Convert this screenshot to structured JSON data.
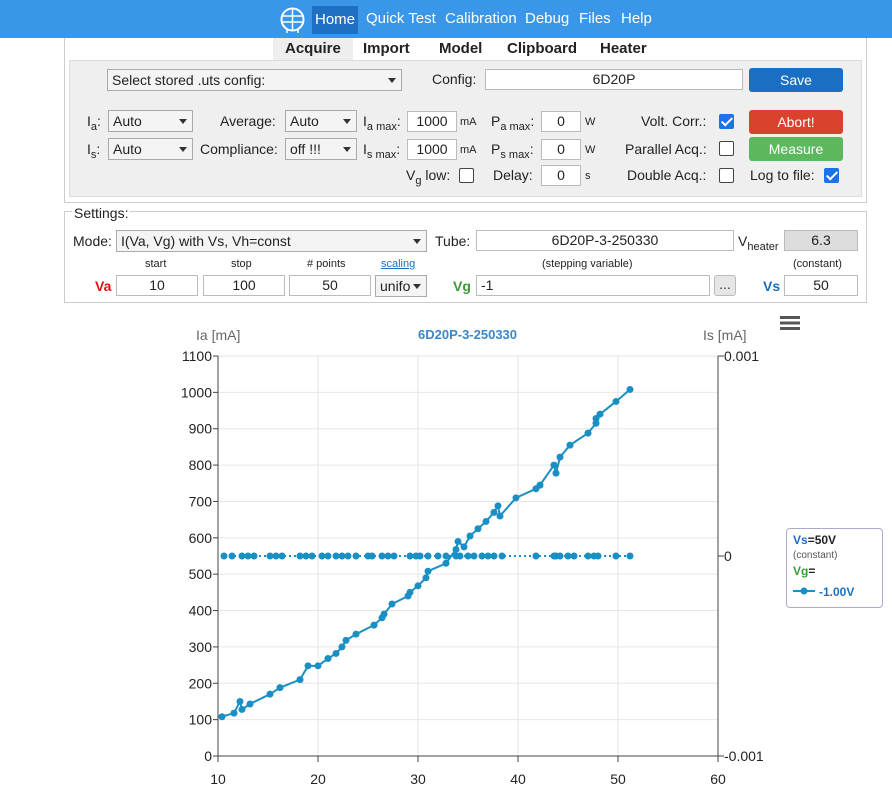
{
  "nav": {
    "items": [
      "Home",
      "Quick Test",
      "Calibration",
      "Debug",
      "Files",
      "Help"
    ],
    "active": "Home"
  },
  "subtabs": {
    "items": [
      "Acquire",
      "Import",
      "Model",
      "Clipboard",
      "Heater"
    ],
    "active": "Acquire"
  },
  "acquire": {
    "stored_config_select": "Select stored .uts config:",
    "config_label": "Config:",
    "config_value": "6D20P",
    "save_label": "Save",
    "ia_label": "I",
    "ia_sub": "a",
    "ia_value": "Auto",
    "is_label": "I",
    "is_sub": "s",
    "is_value": "Auto",
    "average_label": "Average:",
    "average_value": "Auto",
    "compliance_label": "Compliance:",
    "compliance_value": "off !!!",
    "iamax_label": "I",
    "iamax_sub": "a max",
    "iamax_value": "1000",
    "iamax_unit": "mA",
    "ismax_label": "I",
    "ismax_sub": "s max",
    "ismax_value": "1000",
    "ismax_unit": "mA",
    "pamax_label": "P",
    "pamax_sub": "a max",
    "pamax_value": "0",
    "pamax_unit": "W",
    "psmax_label": "P",
    "psmax_sub": "s max",
    "psmax_value": "0",
    "psmax_unit": "W",
    "vglow_label": "V",
    "vglow_sub": "g",
    "vglow_suffix": " low:",
    "delay_label": "Delay:",
    "delay_value": "0",
    "delay_unit": "s",
    "voltcorr_label": "Volt. Corr.:",
    "parallel_label": "Parallel Acq.:",
    "double_label": "Double Acq.:",
    "logfile_label": "Log to file:",
    "abort_label": "Abort!",
    "measure_label": "Measure",
    "abort_color": "#d9432e",
    "measure_color": "#5cb85c",
    "save_color": "#1a6fc4"
  },
  "settings": {
    "legend": "Settings:",
    "mode_label": "Mode:",
    "mode_value": "I(Va, Vg) with Vs, Vh=const",
    "tube_label": "Tube:",
    "tube_value": "6D20P-3-250330",
    "vheater_label": "V",
    "vheater_sub": "heater",
    "vheater_value": "6.3",
    "start_label": "start",
    "stop_label": "stop",
    "points_label": "# points",
    "scaling_label": "scaling",
    "stepping_label": "(stepping variable)",
    "constant_label": "(constant)",
    "va_label": "Va",
    "va_start": "10",
    "va_stop": "100",
    "va_points": "50",
    "scaling_value": "unifo",
    "vg_label": "Vg",
    "vg_value": "-1",
    "dots_label": "...",
    "vs_label": "Vs",
    "vs_value": "50"
  },
  "legend_box": {
    "vs_name": "Vs",
    "vs_value": "=50V",
    "vs_note": "(constant)",
    "vg_name": "Vg",
    "vg_eq": "=",
    "series_label": "-1.00V"
  },
  "chart_data": {
    "type": "line",
    "title": "6D20P-3-250330",
    "ylabel": "Ia [mA]",
    "y2label": "Is [mA]",
    "xlabel": "",
    "xlim": [
      10,
      60
    ],
    "ylim": [
      0,
      1100
    ],
    "y2lim": [
      -0.001,
      0.001
    ],
    "xticks": [
      10,
      20,
      30,
      40,
      50,
      60
    ],
    "yticks": [
      0,
      100,
      200,
      300,
      400,
      500,
      600,
      700,
      800,
      900,
      1000,
      1100
    ],
    "y2ticks": [
      "0.001",
      "0",
      "-0.001"
    ],
    "grid": true,
    "series": [
      {
        "name": "Ia",
        "color": "#1a8fc4",
        "style": "solid",
        "axis": "left",
        "x": [
          10.4,
          11.6,
          12.2,
          12.4,
          13.2,
          15.2,
          16.2,
          18.2,
          19.0,
          20.0,
          21.0,
          21.8,
          22.4,
          22.8,
          23.8,
          25.6,
          26.4,
          26.6,
          27.4,
          29.0,
          29.2,
          30.0,
          30.8,
          31.0,
          32.8,
          33.8,
          34.0,
          34.6,
          35.2,
          36.0,
          36.8,
          37.6,
          38.0,
          38.2,
          39.8,
          41.8,
          42.2,
          43.6,
          43.8,
          44.2,
          45.2,
          47.0,
          47.8,
          47.8,
          48.2,
          49.8,
          51.2
        ],
        "y": [
          108,
          118,
          150,
          128,
          143,
          170,
          188,
          210,
          248,
          248,
          268,
          282,
          300,
          318,
          335,
          360,
          380,
          390,
          418,
          440,
          450,
          468,
          490,
          508,
          530,
          568,
          590,
          575,
          605,
          625,
          645,
          670,
          688,
          660,
          710,
          735,
          745,
          800,
          778,
          822,
          855,
          888,
          915,
          928,
          940,
          975,
          1008
        ]
      },
      {
        "name": "Is",
        "color": "#1a8fc4",
        "style": "dotted",
        "axis": "right",
        "x": [
          10.6,
          11.4,
          12.4,
          13.0,
          13.6,
          15.2,
          15.8,
          16.4,
          18.2,
          18.8,
          19.4,
          20.4,
          21.0,
          21.8,
          22.4,
          23.0,
          23.8,
          25.0,
          25.4,
          26.4,
          27.0,
          27.6,
          29.2,
          29.8,
          30.2,
          31.0,
          32.0,
          32.8,
          33.8,
          34.2,
          35.0,
          35.6,
          36.4,
          37.0,
          37.6,
          38.4,
          41.8,
          43.6,
          43.8,
          44.2,
          45.0,
          45.6,
          47.0,
          47.6,
          48.0,
          49.8,
          51.2
        ],
        "y": [
          0,
          0,
          0,
          0,
          0,
          0,
          0,
          0,
          0,
          0,
          0,
          0,
          0,
          0,
          0,
          0,
          0,
          0,
          0,
          0,
          0,
          0,
          0,
          0,
          0,
          0,
          0,
          0,
          0,
          0,
          0,
          0,
          0,
          0,
          0,
          0,
          0,
          0,
          0,
          0,
          0,
          0,
          0,
          0,
          0,
          0,
          0
        ]
      }
    ]
  }
}
